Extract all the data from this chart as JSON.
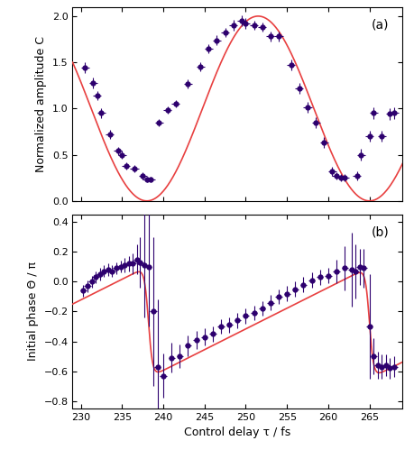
{
  "title_a": "(a)",
  "title_b": "(b)",
  "xlabel": "Control delay τ / fs",
  "ylabel_a": "Normalized amplitude C",
  "ylabel_b": "Initial phase Θ / π",
  "xlim": [
    229,
    269
  ],
  "ylim_a": [
    0.0,
    2.1
  ],
  "ylim_b": [
    -0.85,
    0.45
  ],
  "xticks": [
    230,
    235,
    240,
    245,
    250,
    255,
    260,
    265
  ],
  "yticks_a": [
    0.0,
    0.5,
    1.0,
    1.5,
    2.0
  ],
  "yticks_b": [
    -0.8,
    -0.6,
    -0.4,
    -0.2,
    0.0,
    0.2,
    0.4
  ],
  "data_color": "#2d006e",
  "theory_color": "#e84040",
  "marker_size": 3.5,
  "theory_linewidth": 1.2,
  "exp_a_x": [
    230.5,
    231.5,
    232.0,
    232.5,
    233.5,
    234.5,
    235.0,
    235.5,
    236.5,
    237.5,
    238.0,
    238.5,
    239.5,
    240.5,
    241.5,
    243.0,
    244.5,
    245.5,
    246.5,
    247.5,
    248.5,
    249.5,
    250.0,
    251.0,
    252.0,
    253.0,
    254.0,
    255.5,
    256.5,
    257.5,
    258.5,
    259.5,
    260.5,
    261.0,
    261.5,
    262.0,
    263.5,
    264.0,
    265.0,
    265.5,
    266.5,
    267.5,
    268.0
  ],
  "exp_a_y": [
    1.44,
    1.28,
    1.14,
    0.95,
    0.72,
    0.54,
    0.5,
    0.38,
    0.35,
    0.27,
    0.23,
    0.23,
    0.85,
    0.98,
    1.05,
    1.27,
    1.45,
    1.65,
    1.74,
    1.82,
    1.9,
    1.95,
    1.92,
    1.9,
    1.88,
    1.78,
    1.78,
    1.47,
    1.22,
    1.01,
    0.85,
    0.63,
    0.32,
    0.27,
    0.25,
    0.25,
    0.27,
    0.5,
    0.7,
    0.95,
    0.7,
    0.94,
    0.95
  ],
  "exp_a_xerr": [
    0.5,
    0.5,
    0.5,
    0.5,
    0.5,
    0.5,
    0.5,
    0.5,
    0.5,
    0.5,
    0.5,
    0.5,
    0.5,
    0.5,
    0.5,
    0.5,
    0.5,
    0.5,
    0.5,
    0.5,
    0.5,
    0.5,
    0.5,
    0.5,
    0.5,
    0.5,
    0.5,
    0.5,
    0.5,
    0.5,
    0.5,
    0.5,
    0.5,
    0.5,
    0.5,
    0.5,
    0.5,
    0.5,
    0.5,
    0.5,
    0.5,
    0.5,
    0.5
  ],
  "exp_a_yerr": [
    0.06,
    0.06,
    0.05,
    0.05,
    0.05,
    0.04,
    0.04,
    0.04,
    0.04,
    0.04,
    0.03,
    0.03,
    0.04,
    0.04,
    0.04,
    0.05,
    0.05,
    0.05,
    0.05,
    0.05,
    0.06,
    0.06,
    0.06,
    0.05,
    0.05,
    0.05,
    0.05,
    0.06,
    0.06,
    0.06,
    0.06,
    0.06,
    0.05,
    0.04,
    0.04,
    0.04,
    0.05,
    0.06,
    0.06,
    0.06,
    0.06,
    0.06,
    0.06
  ],
  "exp_b_x": [
    230.3,
    230.8,
    231.3,
    231.8,
    232.3,
    232.8,
    233.3,
    233.8,
    234.3,
    234.8,
    235.3,
    235.8,
    236.3,
    236.8,
    237.2,
    237.7,
    238.2,
    238.8,
    239.3,
    240.0,
    241.0,
    242.0,
    243.0,
    244.0,
    245.0,
    246.0,
    247.0,
    248.0,
    249.0,
    250.0,
    251.0,
    252.0,
    253.0,
    254.0,
    255.0,
    256.0,
    257.0,
    258.0,
    259.0,
    260.0,
    261.0,
    262.0,
    262.8,
    263.3,
    263.8,
    264.3,
    265.0,
    265.5,
    266.0,
    266.5,
    267.0,
    267.5,
    268.0
  ],
  "exp_b_y": [
    -0.06,
    -0.03,
    0.0,
    0.03,
    0.05,
    0.07,
    0.08,
    0.07,
    0.09,
    0.1,
    0.11,
    0.12,
    0.12,
    0.15,
    0.13,
    0.11,
    0.1,
    -0.2,
    -0.57,
    -0.63,
    -0.51,
    -0.5,
    -0.43,
    -0.39,
    -0.37,
    -0.35,
    -0.3,
    -0.29,
    -0.26,
    -0.23,
    -0.21,
    -0.18,
    -0.14,
    -0.1,
    -0.08,
    -0.05,
    -0.02,
    0.01,
    0.03,
    0.04,
    0.07,
    0.09,
    0.08,
    0.07,
    0.1,
    0.09,
    -0.3,
    -0.5,
    -0.56,
    -0.57,
    -0.56,
    -0.58,
    -0.57
  ],
  "exp_b_xerr": [
    0.4,
    0.4,
    0.4,
    0.4,
    0.4,
    0.4,
    0.4,
    0.4,
    0.4,
    0.4,
    0.4,
    0.4,
    0.4,
    0.4,
    0.4,
    0.4,
    0.4,
    0.4,
    0.4,
    0.4,
    0.4,
    0.4,
    0.4,
    0.4,
    0.4,
    0.4,
    0.4,
    0.4,
    0.4,
    0.4,
    0.4,
    0.4,
    0.4,
    0.4,
    0.4,
    0.4,
    0.4,
    0.4,
    0.4,
    0.4,
    0.4,
    0.4,
    0.4,
    0.4,
    0.4,
    0.4,
    0.4,
    0.4,
    0.4,
    0.4,
    0.4,
    0.4,
    0.4
  ],
  "exp_b_yerr": [
    0.04,
    0.04,
    0.04,
    0.04,
    0.04,
    0.04,
    0.04,
    0.04,
    0.04,
    0.04,
    0.05,
    0.05,
    0.07,
    0.1,
    0.17,
    0.35,
    0.4,
    0.5,
    0.45,
    0.15,
    0.1,
    0.08,
    0.07,
    0.06,
    0.06,
    0.05,
    0.05,
    0.05,
    0.05,
    0.05,
    0.05,
    0.05,
    0.05,
    0.05,
    0.05,
    0.05,
    0.05,
    0.05,
    0.05,
    0.05,
    0.08,
    0.15,
    0.25,
    0.18,
    0.12,
    0.13,
    0.35,
    0.12,
    0.09,
    0.08,
    0.07,
    0.07,
    0.07
  ],
  "tau0": 238.0,
  "T": 27.0
}
